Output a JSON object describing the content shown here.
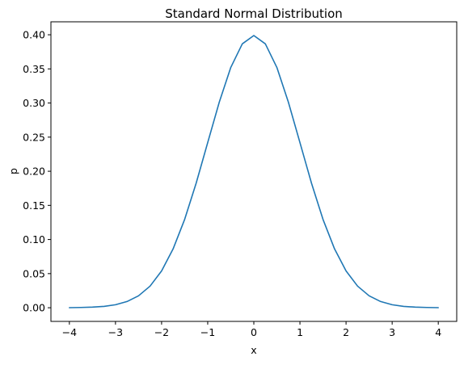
{
  "chart_data": {
    "type": "line",
    "title": "Standard Normal Distribution",
    "xlabel": "x",
    "ylabel": "p",
    "xlim": [
      -4.4,
      4.4
    ],
    "ylim": [
      -0.02,
      0.419
    ],
    "x_ticks": [
      -4,
      -3,
      -2,
      -1,
      0,
      1,
      2,
      3,
      4
    ],
    "x_tick_labels": [
      "−4",
      "−3",
      "−2",
      "−1",
      "0",
      "1",
      "2",
      "3",
      "4"
    ],
    "y_ticks": [
      0.0,
      0.05,
      0.1,
      0.15,
      0.2,
      0.25,
      0.3,
      0.35,
      0.4
    ],
    "y_tick_labels": [
      "0.00",
      "0.05",
      "0.10",
      "0.15",
      "0.20",
      "0.25",
      "0.30",
      "0.35",
      "0.40"
    ],
    "grid": false,
    "series": [
      {
        "color": "#1f77b4",
        "x": [
          -4.0,
          -3.75,
          -3.5,
          -3.25,
          -3.0,
          -2.75,
          -2.5,
          -2.25,
          -2.0,
          -1.75,
          -1.5,
          -1.25,
          -1.0,
          -0.75,
          -0.5,
          -0.25,
          0.0,
          0.25,
          0.5,
          0.75,
          1.0,
          1.25,
          1.5,
          1.75,
          2.0,
          2.25,
          2.5,
          2.75,
          3.0,
          3.25,
          3.5,
          3.75,
          4.0
        ],
        "y": [
          0.0001,
          0.0004,
          0.0009,
          0.002,
          0.0044,
          0.0091,
          0.0175,
          0.0317,
          0.054,
          0.0863,
          0.1295,
          0.1826,
          0.242,
          0.3011,
          0.3521,
          0.3867,
          0.3989,
          0.3867,
          0.3521,
          0.3011,
          0.242,
          0.1826,
          0.1295,
          0.0863,
          0.054,
          0.0317,
          0.0175,
          0.0091,
          0.0044,
          0.002,
          0.0009,
          0.0004,
          0.0001
        ]
      }
    ]
  }
}
